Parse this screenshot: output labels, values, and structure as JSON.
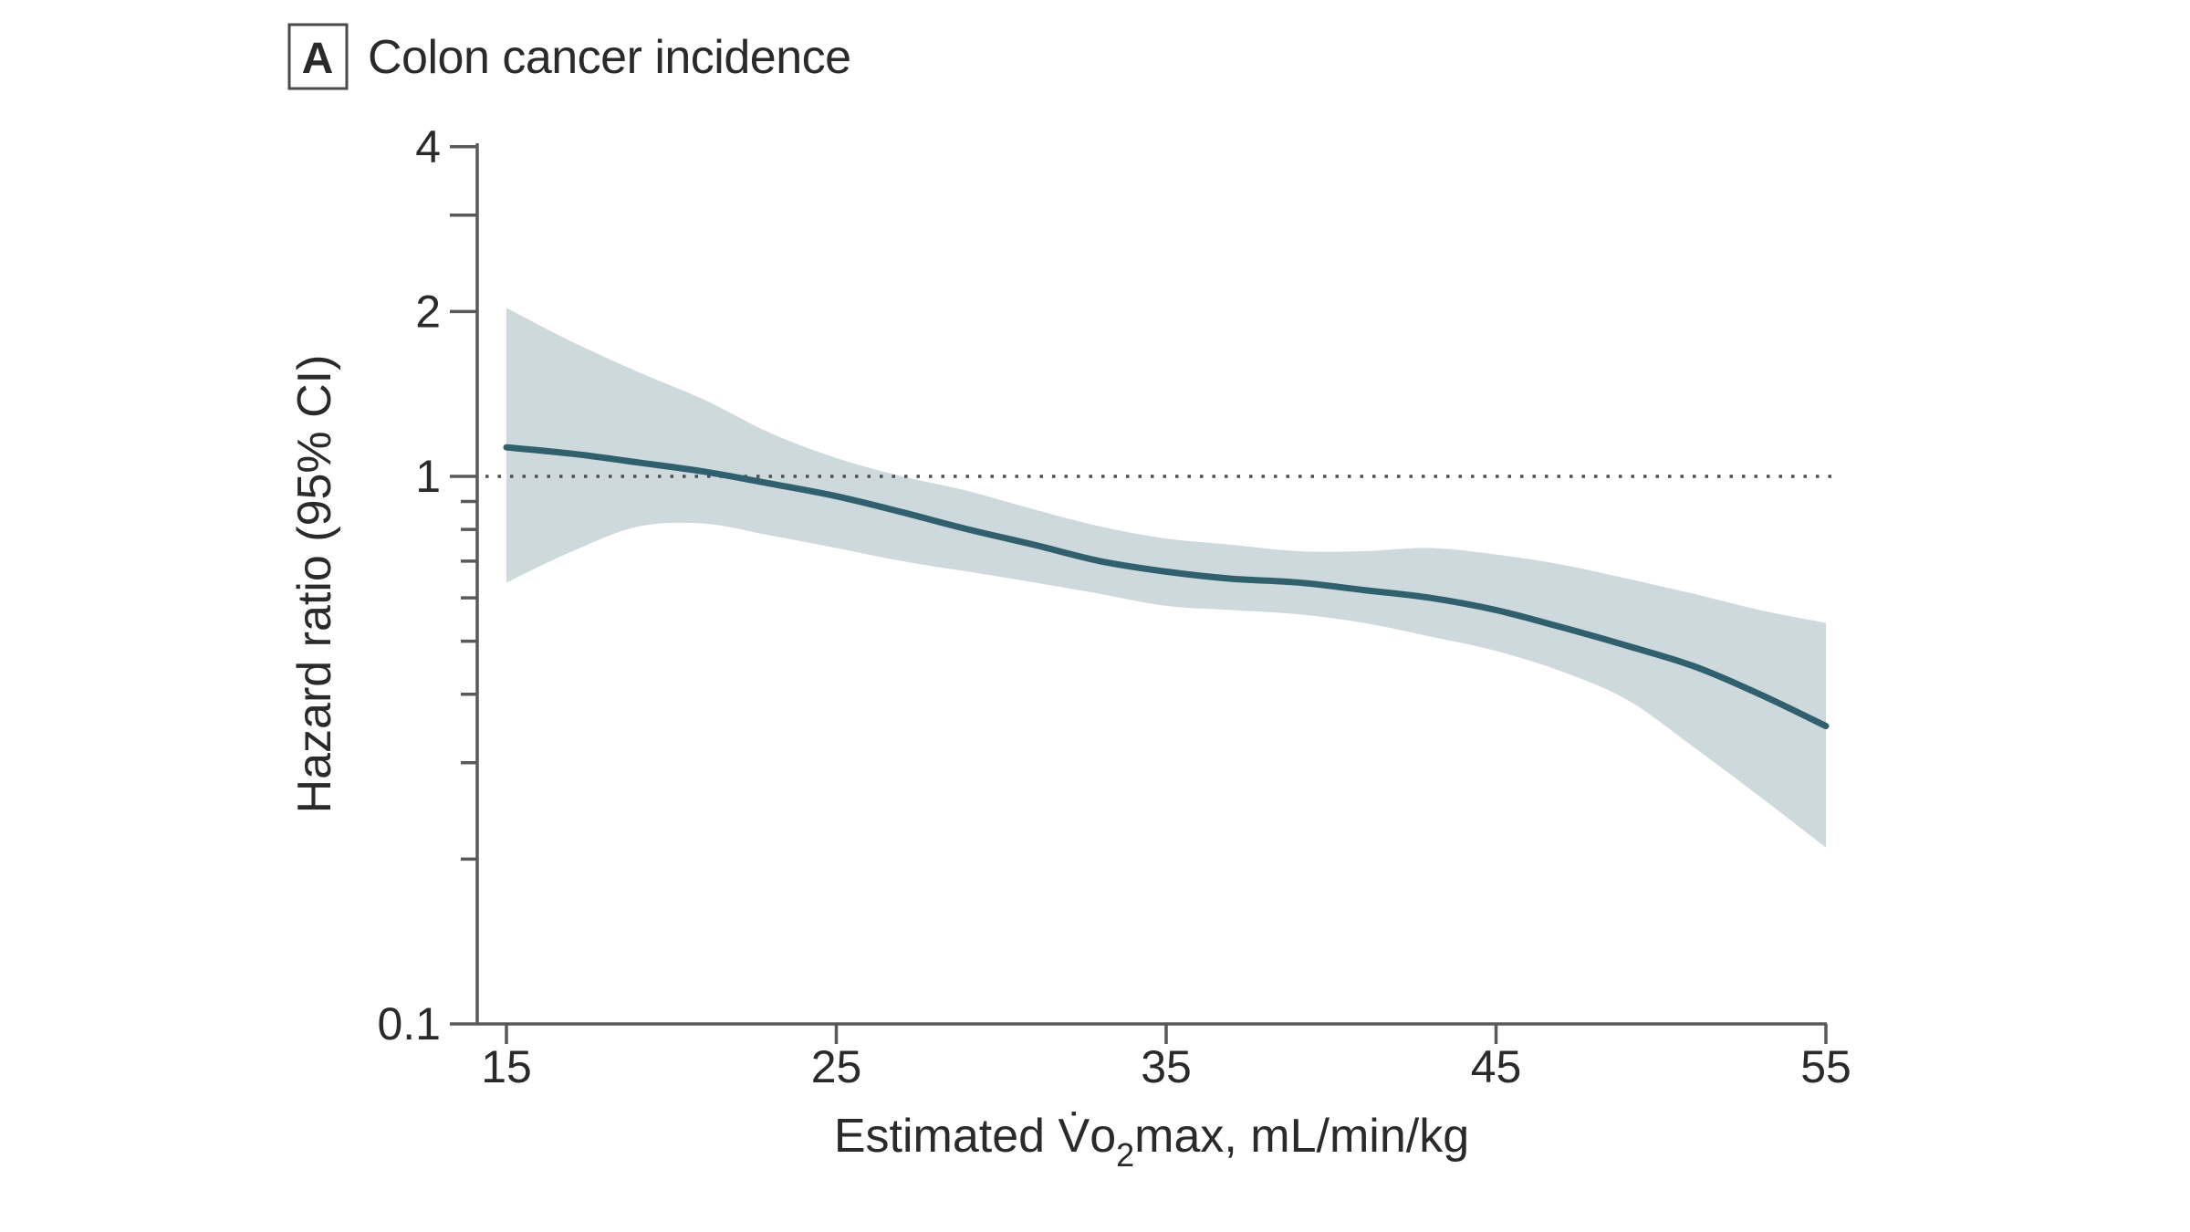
{
  "panel": {
    "label": "A",
    "title": "Colon cancer incidence"
  },
  "labels": {
    "ylabel": "Hazard ratio (95% CI)",
    "xlabel_pre": "Estimated V̇o",
    "xlabel_sub": "2",
    "xlabel_post": "max, mL/min/kg"
  },
  "colors": {
    "curve": "#305f6e",
    "band": "#cdd9dd",
    "axis": "#58595b",
    "reference_line": "#4d4d4d",
    "text": "#2a2a2a"
  },
  "chart_data": {
    "type": "line",
    "title": "Colon cancer incidence",
    "xlabel": "Estimated V̇O2max, mL/min/kg",
    "ylabel": "Hazard ratio (95% CI)",
    "x_axis": {
      "min": 15,
      "max": 55,
      "ticks": [
        15,
        25,
        35,
        45,
        55
      ]
    },
    "y_axis": {
      "scale": "log",
      "min": 0.1,
      "max": 4,
      "major_ticks": [
        {
          "value": 4,
          "label": "4"
        },
        {
          "value": 3,
          "label": ""
        },
        {
          "value": 2,
          "label": "2"
        },
        {
          "value": 1,
          "label": "1"
        },
        {
          "value": 0.1,
          "label": "0.1"
        }
      ],
      "minor_ticks": [
        0.9,
        0.8,
        0.7,
        0.6,
        0.5,
        0.4,
        0.3,
        0.2
      ]
    },
    "reference_line_y": 1.0,
    "x": [
      15,
      17,
      19,
      21,
      23,
      25,
      27,
      29,
      31,
      33,
      35,
      37,
      39,
      41,
      43,
      45,
      47,
      49,
      51,
      53,
      55
    ],
    "series": [
      {
        "name": "Hazard ratio",
        "values": [
          1.13,
          1.1,
          1.06,
          1.02,
          0.97,
          0.92,
          0.86,
          0.8,
          0.75,
          0.7,
          0.67,
          0.65,
          0.64,
          0.62,
          0.6,
          0.57,
          0.53,
          0.49,
          0.45,
          0.4,
          0.35
        ]
      },
      {
        "name": "95% CI upper",
        "values": [
          2.03,
          1.76,
          1.55,
          1.38,
          1.2,
          1.08,
          1.0,
          0.94,
          0.87,
          0.81,
          0.77,
          0.75,
          0.73,
          0.73,
          0.74,
          0.72,
          0.69,
          0.65,
          0.61,
          0.57,
          0.54
        ]
      },
      {
        "name": "95% CI lower",
        "values": [
          0.64,
          0.73,
          0.81,
          0.82,
          0.78,
          0.74,
          0.7,
          0.67,
          0.64,
          0.61,
          0.58,
          0.57,
          0.56,
          0.54,
          0.51,
          0.48,
          0.44,
          0.39,
          0.32,
          0.26,
          0.21
        ]
      }
    ],
    "legend": [],
    "grid": false
  }
}
